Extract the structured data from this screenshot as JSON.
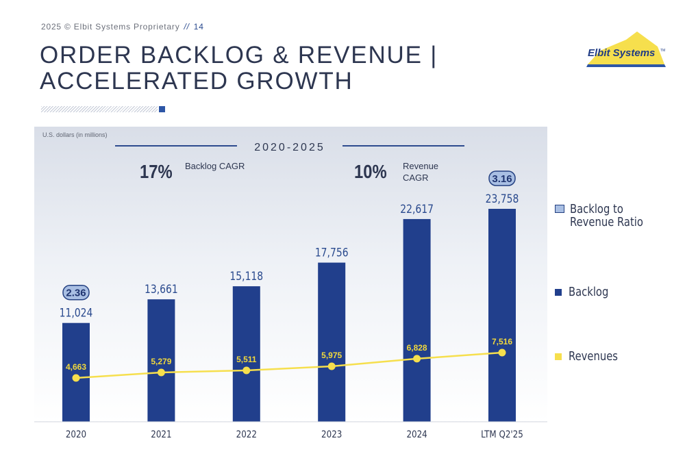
{
  "header": {
    "source": "2025 © Elbit Systems Proprietary",
    "separator": "//",
    "page_number": "14"
  },
  "title": {
    "line1": "ORDER BACKLOG & REVENUE |",
    "line2": "ACCELERATED GROWTH"
  },
  "logo": {
    "text": "Elbit Systems",
    "tm": "TM"
  },
  "colors": {
    "backlog": "#213f8c",
    "revenue": "#f6df4d",
    "ratio_fill": "#a9bfe3",
    "text_dark": "#2d3650"
  },
  "chart_data": {
    "type": "bar",
    "units_label": "U.S. dollars (in millions)",
    "period_label": "2020-2025",
    "cagr": [
      {
        "value": "17%",
        "label": "Backlog CAGR"
      },
      {
        "value": "10%",
        "label": "Revenue CAGR"
      }
    ],
    "categories": [
      "2020",
      "2021",
      "2022",
      "2023",
      "2024",
      "LTM Q2'25"
    ],
    "series": [
      {
        "name": "Backlog",
        "type": "bar",
        "values": [
          11024,
          13661,
          15118,
          17756,
          22617,
          23758
        ],
        "labels": [
          "11,024",
          "13,661",
          "15,118",
          "17,756",
          "22,617",
          "23,758"
        ]
      },
      {
        "name": "Revenues",
        "type": "line",
        "values": [
          4663,
          5279,
          5511,
          5975,
          6828,
          7516
        ],
        "labels": [
          "4,663",
          "5,279",
          "5,511",
          "5,975",
          "6,828",
          "7,516"
        ]
      }
    ],
    "ratio_labels": [
      {
        "index": 0,
        "label": "2.36"
      },
      {
        "index": 5,
        "label": "3.16"
      }
    ],
    "ylim": [
      0,
      27000
    ],
    "grid": false,
    "legend_position": "right"
  },
  "legend": {
    "ratio": "Backlog to Revenue Ratio",
    "ratio_line1": "Backlog to",
    "ratio_line2": "Revenue Ratio",
    "backlog": "Backlog",
    "revenues": "Revenues"
  }
}
